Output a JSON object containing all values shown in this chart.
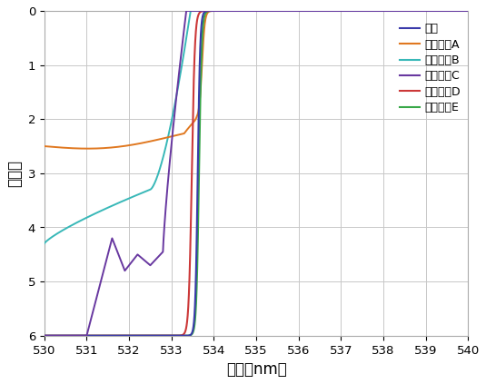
{
  "xlim": [
    530,
    540
  ],
  "ylim": [
    6,
    0
  ],
  "xticks": [
    530,
    531,
    532,
    533,
    534,
    535,
    536,
    537,
    538,
    539,
    540
  ],
  "yticks": [
    0,
    1,
    2,
    3,
    4,
    5,
    6
  ],
  "xlabel": "波长（nm）",
  "ylabel": "光密度",
  "legend_labels": [
    "设计",
    "测得光谱A",
    "测得光谱B",
    "测得光谱C",
    "测得光谱D",
    "测得光谱E"
  ],
  "colors": {
    "design": "#3a3aaa",
    "A": "#e07820",
    "B": "#38b8b8",
    "C": "#6838a0",
    "D": "#cc3838",
    "E": "#38a848"
  },
  "background_color": "#ffffff",
  "grid_color": "#c8c8c8",
  "figsize": [
    5.35,
    4.23
  ],
  "dpi": 100
}
